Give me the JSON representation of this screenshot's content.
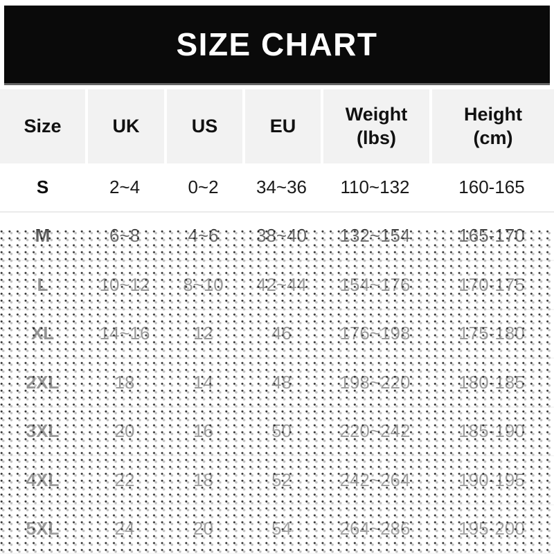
{
  "banner": {
    "title": "SIZE CHART"
  },
  "chart_data": {
    "type": "table",
    "title": "SIZE CHART",
    "columns": [
      {
        "label": "Size",
        "sub": ""
      },
      {
        "label": "UK",
        "sub": ""
      },
      {
        "label": "US",
        "sub": ""
      },
      {
        "label": "EU",
        "sub": ""
      },
      {
        "label": "Weight",
        "sub": "(lbs)"
      },
      {
        "label": "Height",
        "sub": "(cm)"
      }
    ],
    "rows": [
      [
        "S",
        "2~4",
        "0~2",
        "34~36",
        "110~132",
        "160-165"
      ],
      [
        "M",
        "6~8",
        "4~6",
        "38~40",
        "132~154",
        "165-170"
      ],
      [
        "L",
        "10~12",
        "8~10",
        "42~44",
        "154~176",
        "170-175"
      ],
      [
        "XL",
        "14~16",
        "12",
        "46",
        "176~198",
        "175-180"
      ],
      [
        "2XL",
        "18",
        "14",
        "48",
        "198~220",
        "180-185"
      ],
      [
        "3XL",
        "20",
        "16",
        "50",
        "220~242",
        "185-190"
      ],
      [
        "4XL",
        "22",
        "18",
        "52",
        "242~264",
        "190-195"
      ],
      [
        "5XL",
        "24",
        "20",
        "54",
        "264~286",
        "195-200"
      ]
    ]
  },
  "overlay": {
    "style": "halftone-dots",
    "dot_color": "#1a1a1a"
  },
  "colors": {
    "banner_bg": "#0a0a0a",
    "banner_text": "#ffffff",
    "header_bg": "#f2f2f2",
    "body_bg": "#ffffff",
    "text": "#1a1a1a",
    "row_divider": "#ebebeb"
  }
}
